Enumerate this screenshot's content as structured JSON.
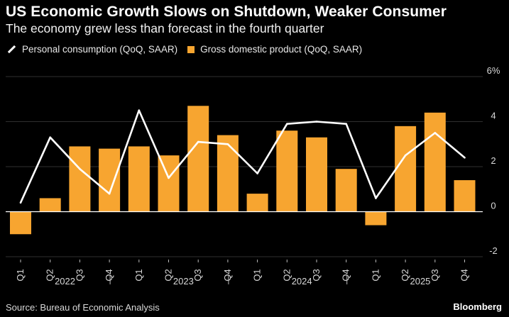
{
  "colors": {
    "background": "#000000",
    "bar": "#f7a530",
    "line": "#ffffff",
    "grid": "#2f2f2f",
    "text": "#d9d9d9"
  },
  "footer": {
    "source": "Source: Bureau of Economic Analysis",
    "brand": "Bloomberg"
  },
  "chart_data": {
    "type": "bar",
    "title": "US Economic Growth Slows on Shutdown, Weaker Consumer",
    "subtitle": "The economy grew less than forecast in the fourth quarter",
    "categories": [
      "Q1",
      "Q2",
      "Q3",
      "Q4",
      "Q1",
      "Q2",
      "Q3",
      "Q4",
      "Q1",
      "Q2",
      "Q3",
      "Q4",
      "Q1",
      "Q2",
      "Q3",
      "Q4"
    ],
    "year_labels": [
      "2022",
      "2023",
      "2024",
      "2025"
    ],
    "series": [
      {
        "name": "Gross domestic product (QoQ, SAAR)",
        "type": "bar",
        "values": [
          -1.0,
          0.6,
          2.9,
          2.8,
          2.9,
          2.5,
          4.7,
          3.4,
          0.8,
          3.6,
          3.3,
          1.9,
          -0.6,
          3.8,
          4.4,
          1.4
        ]
      },
      {
        "name": "Personal consumption (QoQ, SAAR)",
        "type": "line",
        "values": [
          0.4,
          3.3,
          1.9,
          0.8,
          4.5,
          1.5,
          3.1,
          3.0,
          1.7,
          3.9,
          4.0,
          3.9,
          0.6,
          2.5,
          3.5,
          2.4
        ]
      }
    ],
    "yticks": [
      "-2",
      "0",
      "2",
      "4",
      "6%"
    ],
    "ylim": [
      -2,
      6
    ],
    "grid": true,
    "legend": "top-left"
  }
}
